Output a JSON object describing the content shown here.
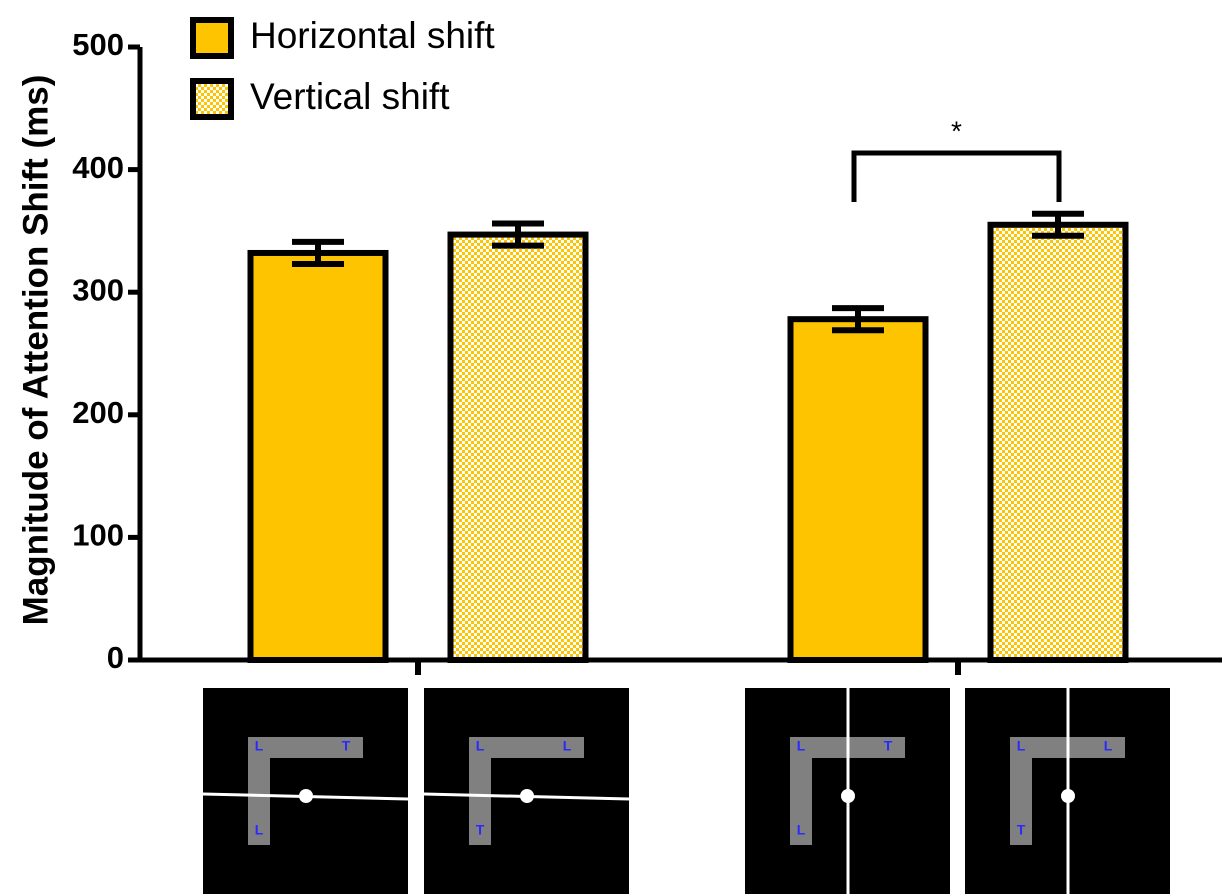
{
  "chart_data": {
    "type": "bar",
    "y_label": "Magnitude of Attention Shift (ms)",
    "categories": [
      null,
      null
    ],
    "series": [
      {
        "name": "Horizontal shift",
        "color": "#ffc400",
        "values": [
          332,
          278
        ],
        "errors": [
          9,
          9
        ]
      },
      {
        "name": "Vertical shift",
        "color": "#ffc400",
        "pattern": "checker",
        "values": [
          347,
          355
        ],
        "errors": [
          9,
          9
        ]
      }
    ],
    "ylim": [
      0,
      500
    ],
    "yticks": [
      0,
      100,
      200,
      300,
      400,
      500
    ],
    "legend": "top-left",
    "annotations": [
      {
        "text": "*"
      }
    ]
  },
  "stimuli": [
    {
      "letters": [
        "L",
        "T",
        "L"
      ]
    },
    {
      "letters": [
        "L",
        "L",
        "T"
      ]
    },
    {
      "letters": [
        "L",
        "T",
        "L"
      ]
    },
    {
      "letters": [
        "L",
        "L",
        "T"
      ]
    }
  ]
}
